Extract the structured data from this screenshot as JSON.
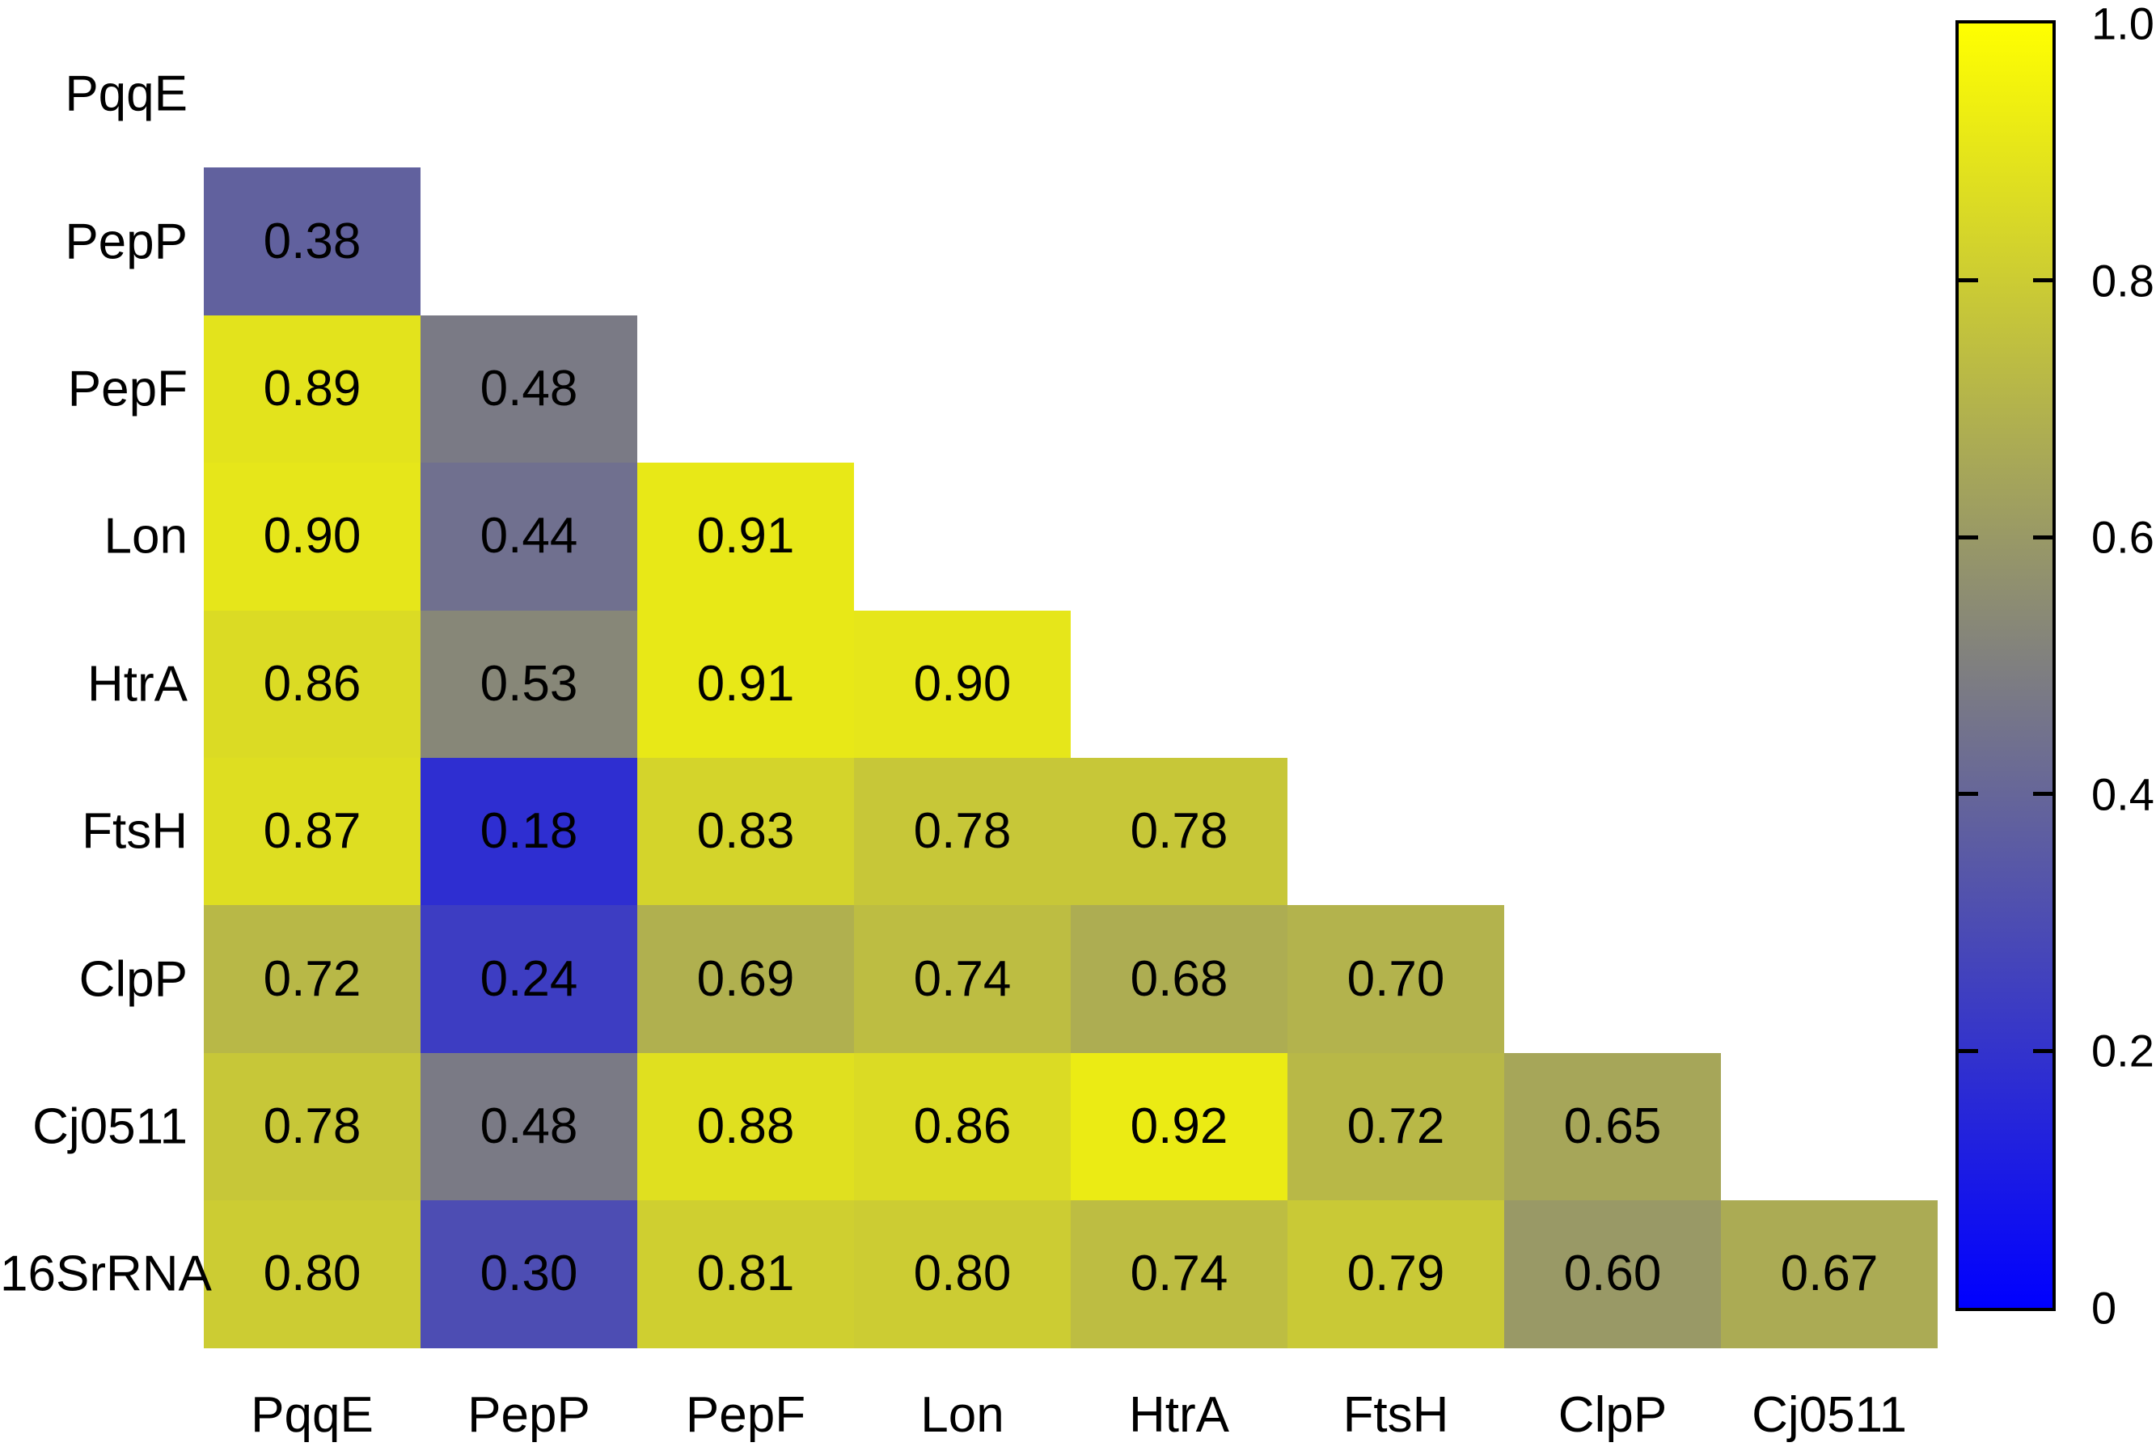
{
  "chart_data": {
    "type": "heatmap",
    "title": "",
    "row_labels": [
      "PqqE",
      "PepP",
      "PepF",
      "Lon",
      "HtrA",
      "FtsH",
      "ClpP",
      "Cj0511",
      "16SrRNA"
    ],
    "col_labels": [
      "PqqE",
      "PepP",
      "PepF",
      "Lon",
      "HtrA",
      "FtsH",
      "ClpP",
      "Cj0511"
    ],
    "matrix_lower_triangle": [
      [],
      [
        0.38
      ],
      [
        0.89,
        0.48
      ],
      [
        0.9,
        0.44,
        0.91
      ],
      [
        0.86,
        0.53,
        0.91,
        0.9
      ],
      [
        0.87,
        0.18,
        0.83,
        0.78,
        0.78
      ],
      [
        0.72,
        0.24,
        0.69,
        0.74,
        0.68,
        0.7
      ],
      [
        0.78,
        0.48,
        0.88,
        0.86,
        0.92,
        0.72,
        0.65
      ],
      [
        0.8,
        0.3,
        0.81,
        0.8,
        0.74,
        0.79,
        0.6,
        0.67
      ]
    ],
    "value_decimals": 2,
    "cell_text_color": "#000000",
    "background": "#ffffff",
    "grid": false,
    "legend_position": "right",
    "colorbar": {
      "min": 0,
      "max": 1,
      "tick_values": [
        1.0,
        0.8,
        0.6,
        0.4,
        0.2,
        0
      ],
      "tick_labels": [
        "1.0",
        "0.8",
        "0.6",
        "0.4",
        "0.2",
        "0"
      ],
      "color_low": "#0000ff",
      "color_mid": "#808080",
      "color_high": "#ffff00",
      "border_color": "#000000"
    }
  }
}
